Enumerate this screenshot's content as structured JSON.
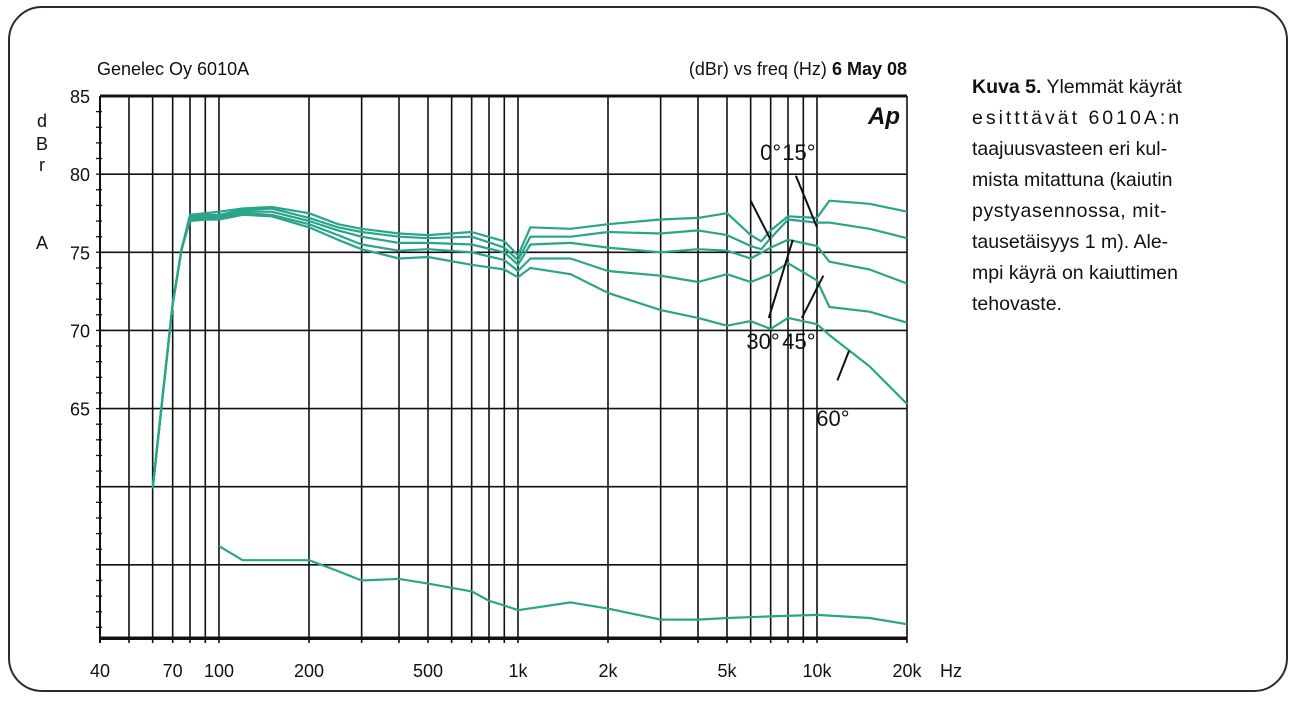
{
  "header": {
    "left": "Genelec Oy 6010A",
    "right_text": "(dBr) vs freq (Hz) ",
    "right_date": "6 May 08",
    "logo": "Ap"
  },
  "caption": {
    "bold": "Kuva 5.",
    "lines": [
      " Ylemmät käyrät",
      "esitttävät 6010A:n",
      "taajuusvasteen eri kul-",
      "mista mitattuna (kaiutin",
      "pystyasennossa, mit-",
      "tausetäisyys 1 m). Ale-",
      "mpi käyrä on kaiuttimen",
      "tehovaste."
    ]
  },
  "colors": {
    "curve": "#2aa58a",
    "grid": "#111111"
  },
  "chart_data": {
    "type": "line",
    "xscale": "log",
    "xlim": [
      40,
      20000
    ],
    "ylim": [
      50,
      85
    ],
    "xlabel": "Hz",
    "ylabel": [
      "d",
      "B",
      "r",
      "A"
    ],
    "x_ticks": [
      {
        "v": 40,
        "label": "40"
      },
      {
        "v": 70,
        "label": "70"
      },
      {
        "v": 100,
        "label": "100"
      },
      {
        "v": 200,
        "label": "200"
      },
      {
        "v": 500,
        "label": "500"
      },
      {
        "v": 1000,
        "label": "1k"
      },
      {
        "v": 2000,
        "label": "2k"
      },
      {
        "v": 5000,
        "label": "5k"
      },
      {
        "v": 10000,
        "label": "10k"
      },
      {
        "v": 20000,
        "label": "20k"
      }
    ],
    "y_ticks": [
      {
        "v": 85,
        "label": "85"
      },
      {
        "v": 80,
        "label": "80"
      },
      {
        "v": 75,
        "label": "75"
      },
      {
        "v": 70,
        "label": "70"
      },
      {
        "v": 65,
        "label": "65"
      }
    ],
    "x_grid": [
      50,
      60,
      70,
      80,
      90,
      100,
      200,
      300,
      400,
      500,
      600,
      700,
      800,
      900,
      1000,
      2000,
      3000,
      4000,
      5000,
      6000,
      7000,
      8000,
      9000,
      10000,
      20000
    ],
    "y_grid": [
      85,
      80,
      75,
      70,
      65,
      60,
      55
    ],
    "baseline_y": 50.3,
    "annotations": [
      {
        "label": "0°",
        "at": [
          7000,
          80.9
        ],
        "arrow_from": [
          6000,
          78.3
        ],
        "arrow_to": [
          7000,
          75.8
        ]
      },
      {
        "label": "15°",
        "at": [
          8700,
          80.9
        ],
        "arrow_from": [
          8500,
          79.9
        ],
        "arrow_to": [
          10000,
          76.6
        ]
      },
      {
        "label": "30°",
        "at": [
          6600,
          68.8
        ],
        "arrow_from": [
          6900,
          70.8
        ],
        "arrow_to": [
          8300,
          75.8
        ]
      },
      {
        "label": "45°",
        "at": [
          8700,
          68.8
        ],
        "arrow_from": [
          8900,
          70.8
        ],
        "arrow_to": [
          10500,
          73.5
        ]
      },
      {
        "label": "60°",
        "at": [
          11300,
          63.9
        ],
        "arrow_from": [
          11700,
          66.8
        ],
        "arrow_to": [
          12800,
          68.7
        ]
      }
    ],
    "series": [
      {
        "values": [
          [
            60,
            59.9
          ],
          [
            65,
            66
          ],
          [
            70,
            71.7
          ],
          [
            75,
            75.2
          ],
          [
            80,
            77.4
          ],
          [
            90,
            77.5
          ],
          [
            100,
            77.6
          ],
          [
            120,
            77.8
          ],
          [
            150,
            77.9
          ],
          [
            200,
            77.5
          ],
          [
            250,
            76.8
          ],
          [
            300,
            76.5
          ],
          [
            400,
            76.2
          ],
          [
            500,
            76.1
          ],
          [
            700,
            76.3
          ],
          [
            900,
            75.7
          ],
          [
            1000,
            74.8
          ],
          [
            1100,
            76.6
          ],
          [
            1500,
            76.5
          ],
          [
            2000,
            76.8
          ],
          [
            3000,
            77.1
          ],
          [
            4000,
            77.2
          ],
          [
            5000,
            77.5
          ],
          [
            6000,
            76.1
          ],
          [
            6500,
            75.7
          ],
          [
            7000,
            76.4
          ],
          [
            8000,
            77.3
          ],
          [
            10000,
            77.2
          ],
          [
            11000,
            78.3
          ],
          [
            15000,
            78.1
          ],
          [
            20000,
            77.6
          ]
        ]
      },
      {
        "values": [
          [
            60,
            59.9
          ],
          [
            65,
            66
          ],
          [
            70,
            71.7
          ],
          [
            75,
            75.2
          ],
          [
            80,
            77.3
          ],
          [
            90,
            77.4
          ],
          [
            100,
            77.4
          ],
          [
            120,
            77.7
          ],
          [
            150,
            77.8
          ],
          [
            200,
            77.2
          ],
          [
            250,
            76.6
          ],
          [
            300,
            76.3
          ],
          [
            400,
            76
          ],
          [
            500,
            75.9
          ],
          [
            700,
            76
          ],
          [
            900,
            75.3
          ],
          [
            1000,
            74.5
          ],
          [
            1100,
            76
          ],
          [
            1500,
            76
          ],
          [
            2000,
            76.3
          ],
          [
            3000,
            76.2
          ],
          [
            4000,
            76.4
          ],
          [
            5000,
            76.1
          ],
          [
            6000,
            75.4
          ],
          [
            6500,
            75.2
          ],
          [
            7000,
            75.9
          ],
          [
            8000,
            77.1
          ],
          [
            10000,
            76.9
          ],
          [
            11000,
            76.9
          ],
          [
            15000,
            76.5
          ],
          [
            20000,
            75.9
          ]
        ]
      },
      {
        "values": [
          [
            60,
            59.9
          ],
          [
            65,
            66
          ],
          [
            70,
            71.7
          ],
          [
            75,
            75.2
          ],
          [
            80,
            77.2
          ],
          [
            90,
            77.3
          ],
          [
            100,
            77.3
          ],
          [
            120,
            77.6
          ],
          [
            150,
            77.6
          ],
          [
            200,
            77
          ],
          [
            250,
            76.4
          ],
          [
            300,
            76
          ],
          [
            400,
            75.6
          ],
          [
            500,
            75.6
          ],
          [
            700,
            75.5
          ],
          [
            900,
            75
          ],
          [
            1000,
            74.2
          ],
          [
            1100,
            75.5
          ],
          [
            1500,
            75.6
          ],
          [
            2000,
            75.3
          ],
          [
            3000,
            75
          ],
          [
            4000,
            75.2
          ],
          [
            5000,
            75.1
          ],
          [
            6000,
            74.6
          ],
          [
            7000,
            75.3
          ],
          [
            8000,
            75.8
          ],
          [
            10000,
            75.4
          ],
          [
            11000,
            74.4
          ],
          [
            15000,
            73.9
          ],
          [
            20000,
            73
          ]
        ]
      },
      {
        "values": [
          [
            60,
            59.9
          ],
          [
            65,
            66
          ],
          [
            70,
            71.7
          ],
          [
            75,
            75.2
          ],
          [
            80,
            77.1
          ],
          [
            90,
            77.2
          ],
          [
            100,
            77.2
          ],
          [
            120,
            77.5
          ],
          [
            150,
            77.4
          ],
          [
            200,
            76.8
          ],
          [
            250,
            76.1
          ],
          [
            300,
            75.5
          ],
          [
            400,
            75.1
          ],
          [
            500,
            75.2
          ],
          [
            700,
            75
          ],
          [
            900,
            74.5
          ],
          [
            1000,
            73.8
          ],
          [
            1100,
            74.6
          ],
          [
            1500,
            74.6
          ],
          [
            2000,
            73.8
          ],
          [
            3000,
            73.5
          ],
          [
            4000,
            73.1
          ],
          [
            5000,
            73.6
          ],
          [
            6000,
            73.1
          ],
          [
            7000,
            73.6
          ],
          [
            8000,
            74.3
          ],
          [
            10000,
            73.2
          ],
          [
            11000,
            71.5
          ],
          [
            15000,
            71.2
          ],
          [
            20000,
            70.5
          ]
        ]
      },
      {
        "values": [
          [
            60,
            59.9
          ],
          [
            65,
            66
          ],
          [
            70,
            71.7
          ],
          [
            75,
            75.2
          ],
          [
            80,
            77
          ],
          [
            90,
            77.1
          ],
          [
            100,
            77.1
          ],
          [
            120,
            77.4
          ],
          [
            150,
            77.3
          ],
          [
            200,
            76.6
          ],
          [
            250,
            75.8
          ],
          [
            300,
            75.2
          ],
          [
            400,
            74.6
          ],
          [
            500,
            74.7
          ],
          [
            700,
            74.2
          ],
          [
            900,
            73.9
          ],
          [
            1000,
            73.4
          ],
          [
            1100,
            74
          ],
          [
            1500,
            73.6
          ],
          [
            2000,
            72.4
          ],
          [
            3000,
            71.3
          ],
          [
            4000,
            70.8
          ],
          [
            5000,
            70.3
          ],
          [
            6000,
            70.6
          ],
          [
            7000,
            70.1
          ],
          [
            8000,
            70.8
          ],
          [
            10000,
            70.4
          ],
          [
            11000,
            69.7
          ],
          [
            15000,
            67.7
          ],
          [
            20000,
            65.3
          ]
        ]
      },
      {
        "values": [
          [
            100,
            56.2
          ],
          [
            120,
            55.3
          ],
          [
            150,
            55.3
          ],
          [
            200,
            55.3
          ],
          [
            250,
            54.6
          ],
          [
            300,
            54
          ],
          [
            400,
            54.1
          ],
          [
            500,
            53.8
          ],
          [
            700,
            53.3
          ],
          [
            800,
            52.7
          ],
          [
            900,
            52.4
          ],
          [
            1000,
            52.1
          ],
          [
            1500,
            52.6
          ],
          [
            2000,
            52.2
          ],
          [
            3000,
            51.5
          ],
          [
            4000,
            51.5
          ],
          [
            5000,
            51.6
          ],
          [
            7000,
            51.7
          ],
          [
            10000,
            51.8
          ],
          [
            15000,
            51.6
          ],
          [
            20000,
            51.2
          ]
        ]
      }
    ]
  }
}
